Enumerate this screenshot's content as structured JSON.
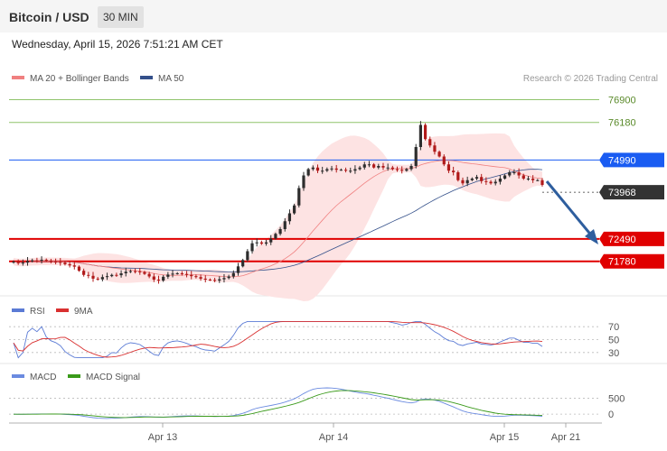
{
  "header": {
    "title": "Bitcoin / USD",
    "interval": "30 MIN",
    "datetime": "Wednesday, April 15, 2026 7:51:21 AM CET"
  },
  "legend": {
    "ma20": "MA 20 + Bollinger Bands",
    "ma50": "MA 50",
    "credit": "Research © 2026 Trading Central",
    "rsi": "RSI",
    "rsi_ma": "9MA",
    "macd": "MACD",
    "macd_signal": "MACD Signal"
  },
  "colors": {
    "up": "#2d2d2d",
    "down": "#b01a1a",
    "ma20": "#f08080",
    "ma50": "#34508a",
    "band_fill": "#fde3e3",
    "resistance_green": "#8fc46c",
    "resistance_blue": "#1a5cf2",
    "support_red": "#e00000",
    "current_bg": "#333333",
    "arrow": "#2e5e9e",
    "rsi": "#5b7bd5",
    "rsi_ma": "#d93030",
    "macd": "#6b8be0",
    "macd_signal": "#3a9a1a"
  },
  "chart_data": {
    "type": "candlestick",
    "ylim": [
      70800,
      77200
    ],
    "x_ticks": [
      "Apr 13",
      "Apr 14",
      "Apr 15",
      "Apr 21"
    ],
    "levels": [
      {
        "label": "76900",
        "value": 76900,
        "style": "resistance"
      },
      {
        "label": "76180",
        "value": 76180,
        "style": "resistance"
      },
      {
        "label": "74990",
        "value": 74990,
        "style": "pivot"
      },
      {
        "label": "73968",
        "value": 73968,
        "style": "current"
      },
      {
        "label": "72490",
        "value": 72490,
        "style": "support"
      },
      {
        "label": "71780",
        "value": 71780,
        "style": "support"
      }
    ],
    "close": [
      71770,
      71720,
      71740,
      71790,
      71810,
      71800,
      71830,
      71790,
      71770,
      71760,
      71740,
      71690,
      71650,
      71610,
      71480,
      71350,
      71320,
      71230,
      71210,
      71280,
      71310,
      71350,
      71340,
      71400,
      71450,
      71470,
      71460,
      71440,
      71380,
      71300,
      71200,
      71170,
      71290,
      71360,
      71390,
      71400,
      71380,
      71350,
      71310,
      71280,
      71230,
      71200,
      71190,
      71170,
      71210,
      71250,
      71300,
      71410,
      71620,
      71820,
      72100,
      72350,
      72380,
      72340,
      72380,
      72500,
      72650,
      72800,
      73050,
      73300,
      73550,
      74100,
      74500,
      74700,
      74750,
      74650,
      74650,
      74700,
      74720,
      74680,
      74680,
      74650,
      74650,
      74700,
      74750,
      74850,
      74850,
      74750,
      74800,
      74750,
      74750,
      74700,
      74680,
      74650,
      74700,
      74800,
      75400,
      76100,
      75650,
      75450,
      75250,
      75100,
      74850,
      74650,
      74600,
      74350,
      74250,
      74350,
      74400,
      74450,
      74320,
      74300,
      74250,
      74300,
      74400,
      74500,
      74600,
      74600,
      74500,
      74400,
      74400,
      74350,
      74350,
      74200
    ],
    "rsi": {
      "levels": [
        70,
        50,
        30
      ]
    },
    "macd": {
      "levels": [
        500,
        0
      ]
    }
  }
}
